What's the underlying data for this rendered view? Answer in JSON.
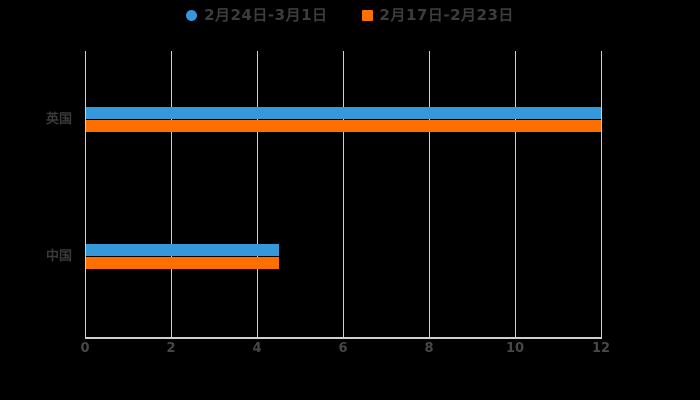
{
  "legend": {
    "items": [
      {
        "icon": "circle-marker-icon",
        "marker": "circle"
      },
      {
        "icon": "square-marker-icon",
        "marker": "square"
      }
    ]
  },
  "chart_data": {
    "type": "bar",
    "orientation": "horizontal",
    "title": "",
    "xlabel": "",
    "ylabel": "",
    "categories": [
      "英国",
      "中国"
    ],
    "series": [
      {
        "name": "2月24日-3月1日",
        "color": "#3498db",
        "values": [
          12,
          4.5
        ]
      },
      {
        "name": "2月17日-2月23日",
        "color": "#ff6f00",
        "values": [
          12,
          4.5
        ]
      }
    ],
    "xlim": [
      0,
      12
    ],
    "xticks": [
      0,
      2,
      4,
      6,
      8,
      10,
      12
    ],
    "xtick_labels": [
      "0",
      "2",
      "4",
      "6",
      "8",
      "10",
      "12"
    ],
    "grid": true,
    "legend_position": "top",
    "background_color": "#000000",
    "gridline_color": "#cfcfcf",
    "text_color": "#3d3d3d"
  }
}
